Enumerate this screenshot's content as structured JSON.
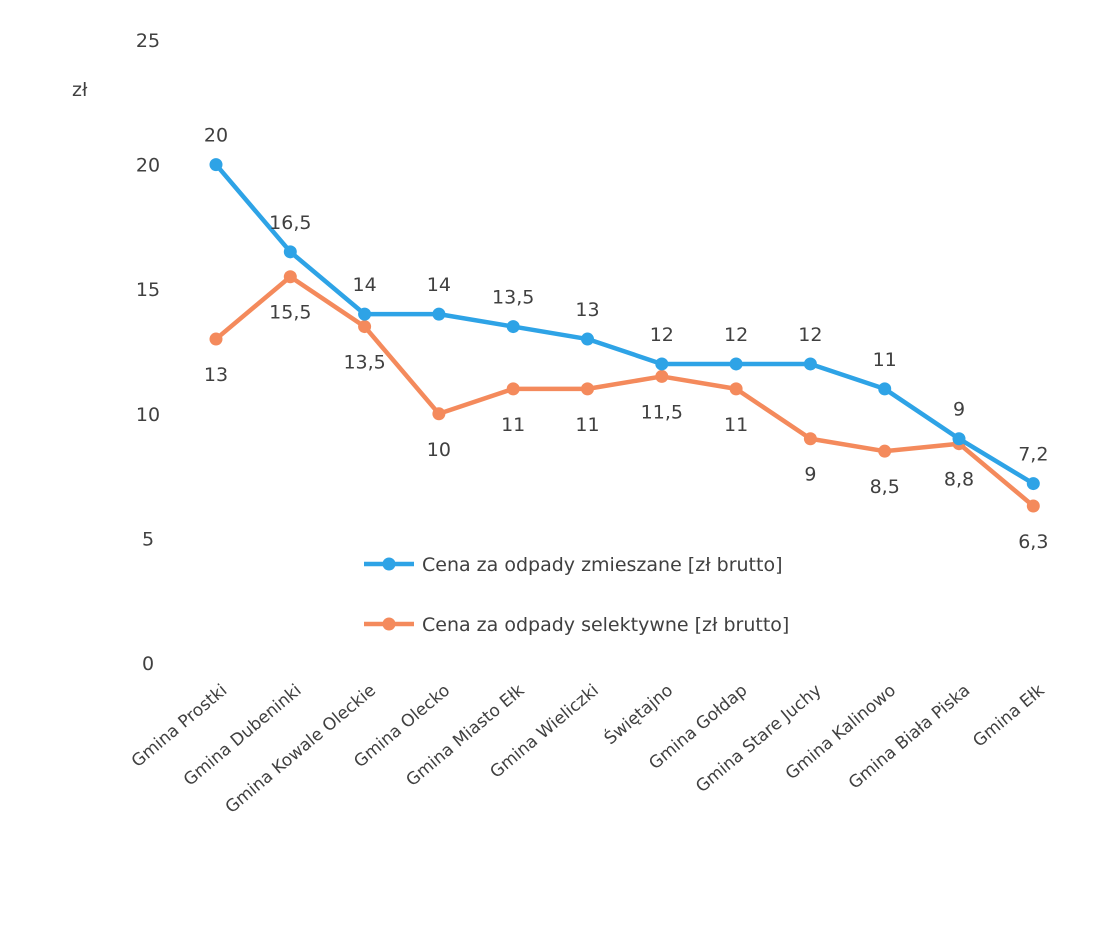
{
  "chart_data": {
    "type": "line",
    "title": "",
    "xlabel": "",
    "ylabel": "",
    "y_unit_label": "zł",
    "ylim": [
      0,
      25
    ],
    "yticks": [
      "0",
      "5",
      "10",
      "15",
      "20",
      "25"
    ],
    "grid": false,
    "legend_position": "inside-center",
    "categories": [
      "Gmina Prostki",
      "Gmina Dubeninki",
      "Gmina Kowale Oleckie",
      "Gmina Olecko",
      "Gmina Miasto Ełk",
      "Gmina Wieliczki",
      "Świętajno",
      "Gmina Gołdap",
      "Gmina Stare Juchy",
      "Gmina Kalinowo",
      "Gmina Biała Piska",
      "Gmina Ełk"
    ],
    "series": [
      {
        "name": "Cena za odpady zmieszane [zł brutto]",
        "color": "#2ea3e6",
        "values": [
          20,
          16.5,
          14,
          14,
          13.5,
          13,
          12,
          12,
          12,
          11,
          9,
          7.2
        ],
        "labels": [
          "20",
          "16,5",
          "14",
          "14",
          "13,5",
          "13",
          "12",
          "12",
          "12",
          "11",
          "9",
          "7,2"
        ],
        "label_side": "above"
      },
      {
        "name": "Cena za odpady selektywne [zł brutto]",
        "color": "#f48a5c",
        "values": [
          13,
          15.5,
          13.5,
          10,
          11,
          11,
          11.5,
          11,
          9,
          8.5,
          8.8,
          6.3
        ],
        "labels": [
          "13",
          "15,5",
          "13,5",
          "10",
          "11",
          "11",
          "11,5",
          "11",
          "9",
          "8,5",
          "8,8",
          "6,3"
        ],
        "label_side": "below"
      }
    ]
  }
}
